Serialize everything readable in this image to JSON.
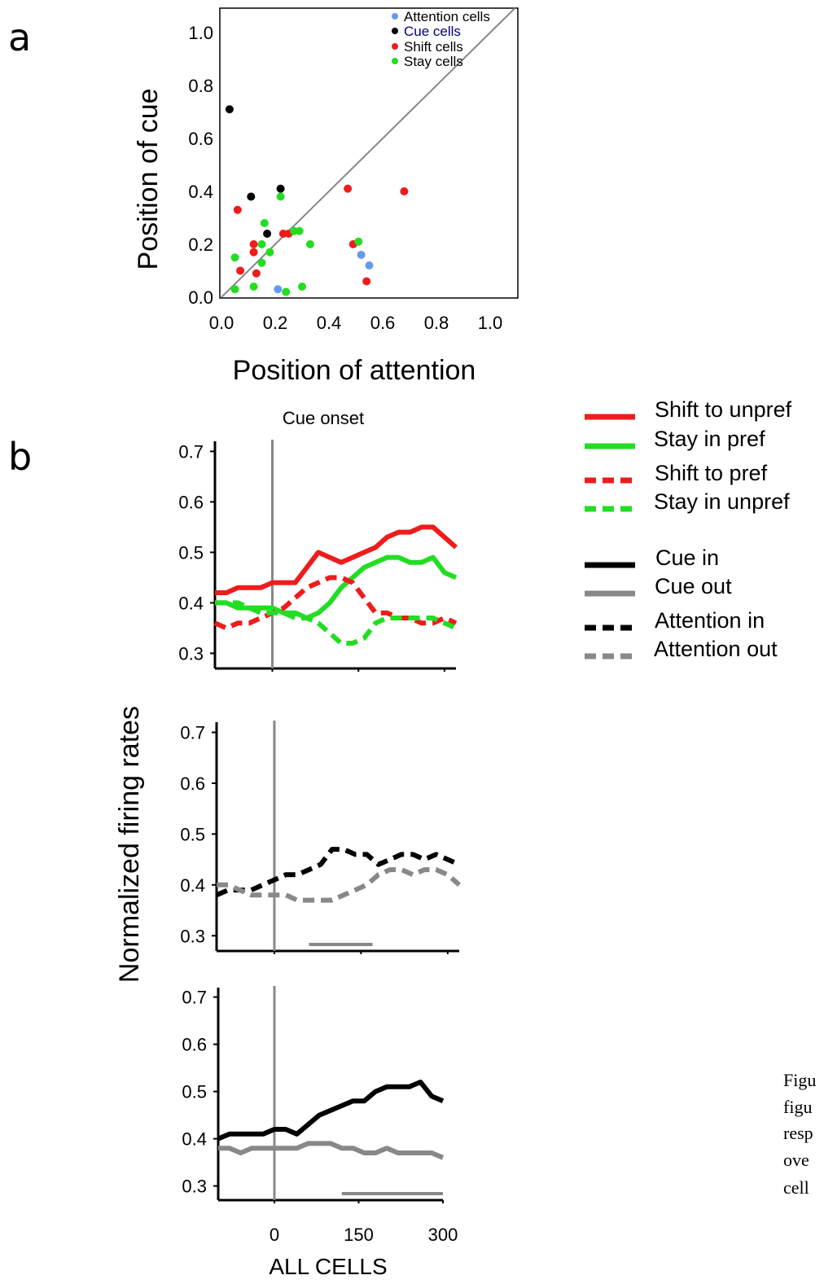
{
  "panels": {
    "a": "a",
    "b": "b"
  },
  "caption_lines": [
    "Figu",
    "figu",
    "resp",
    "ove",
    "cell"
  ],
  "colors": {
    "attention": "#6699ee",
    "cue": "#000000",
    "shift": "#ee1c1c",
    "stay": "#22dd22",
    "cue_label": "#000080",
    "diagonal": "#888888",
    "gray": "#888888"
  },
  "chart_data": [
    {
      "type": "scatter",
      "xlabel": "Position of attention",
      "ylabel": "Position of cue",
      "xlim": [
        0,
        1.1
      ],
      "ylim": [
        0,
        1.1
      ],
      "xticks": [
        "0.0",
        "0.2",
        "0.4",
        "0.6",
        "0.8",
        "1.0"
      ],
      "yticks": [
        "0.0",
        "0.2",
        "0.4",
        "0.6",
        "0.8",
        "1.0"
      ],
      "diagonal": true,
      "legend_position": "top-right",
      "series": [
        {
          "name": "Attention cells",
          "color": "#6699ee",
          "points": [
            [
              0.21,
              0.03
            ],
            [
              0.52,
              0.16
            ],
            [
              0.55,
              0.12
            ]
          ]
        },
        {
          "name": "Cue cells",
          "color": "#000000",
          "points": [
            [
              0.03,
              0.71
            ],
            [
              0.11,
              0.38
            ],
            [
              0.22,
              0.41
            ],
            [
              0.17,
              0.24
            ]
          ]
        },
        {
          "name": "Shift cells",
          "color": "#ee1c1c",
          "points": [
            [
              0.06,
              0.33
            ],
            [
              0.47,
              0.41
            ],
            [
              0.68,
              0.4
            ],
            [
              0.12,
              0.2
            ],
            [
              0.12,
              0.17
            ],
            [
              0.13,
              0.09
            ],
            [
              0.07,
              0.1
            ],
            [
              0.23,
              0.24
            ],
            [
              0.25,
              0.24
            ],
            [
              0.49,
              0.2
            ],
            [
              0.54,
              0.06
            ]
          ]
        },
        {
          "name": "Stay cells",
          "color": "#22dd22",
          "points": [
            [
              0.22,
              0.38
            ],
            [
              0.16,
              0.28
            ],
            [
              0.05,
              0.15
            ],
            [
              0.15,
              0.2
            ],
            [
              0.18,
              0.17
            ],
            [
              0.15,
              0.13
            ],
            [
              0.27,
              0.25
            ],
            [
              0.29,
              0.25
            ],
            [
              0.33,
              0.2
            ],
            [
              0.51,
              0.21
            ],
            [
              0.12,
              0.04
            ],
            [
              0.24,
              0.02
            ],
            [
              0.3,
              0.04
            ],
            [
              0.05,
              0.03
            ]
          ]
        }
      ]
    },
    {
      "type": "line",
      "title": "Cue onset",
      "xlim": [
        -100,
        320
      ],
      "ylim": [
        0.27,
        0.72
      ],
      "yticks": [
        "0.3",
        "0.4",
        "0.5",
        "0.6",
        "0.7"
      ],
      "series": [
        {
          "name": "Shift to unpref",
          "color": "#ee1c1c",
          "dash": "solid",
          "x": [
            -100,
            -80,
            -60,
            -40,
            -20,
            0,
            20,
            40,
            60,
            80,
            100,
            120,
            140,
            160,
            180,
            200,
            220,
            240,
            260,
            280,
            300,
            320
          ],
          "y": [
            0.42,
            0.42,
            0.43,
            0.43,
            0.43,
            0.44,
            0.44,
            0.44,
            0.47,
            0.5,
            0.49,
            0.48,
            0.49,
            0.5,
            0.51,
            0.53,
            0.54,
            0.54,
            0.55,
            0.55,
            0.53,
            0.51
          ]
        },
        {
          "name": "Stay in pref",
          "color": "#22dd22",
          "dash": "solid",
          "x": [
            -100,
            -80,
            -60,
            -40,
            -20,
            0,
            20,
            40,
            60,
            80,
            100,
            120,
            140,
            160,
            180,
            200,
            220,
            240,
            260,
            280,
            300,
            320
          ],
          "y": [
            0.4,
            0.4,
            0.39,
            0.39,
            0.39,
            0.39,
            0.38,
            0.38,
            0.37,
            0.38,
            0.4,
            0.43,
            0.45,
            0.47,
            0.48,
            0.49,
            0.49,
            0.48,
            0.48,
            0.49,
            0.46,
            0.45
          ]
        },
        {
          "name": "Shift to pref",
          "color": "#ee1c1c",
          "dash": "dashed",
          "x": [
            -100,
            -80,
            -60,
            -40,
            -20,
            0,
            20,
            40,
            60,
            80,
            100,
            120,
            140,
            160,
            180,
            200,
            220,
            240,
            260,
            280,
            300,
            320
          ],
          "y": [
            0.36,
            0.35,
            0.36,
            0.36,
            0.37,
            0.38,
            0.39,
            0.41,
            0.43,
            0.44,
            0.45,
            0.45,
            0.44,
            0.41,
            0.38,
            0.38,
            0.37,
            0.37,
            0.36,
            0.36,
            0.37,
            0.36
          ]
        },
        {
          "name": "Stay in unpref",
          "color": "#22dd22",
          "dash": "dashed",
          "x": [
            -100,
            -80,
            -60,
            -40,
            -20,
            0,
            20,
            40,
            60,
            80,
            100,
            120,
            140,
            160,
            180,
            200,
            220,
            240,
            260,
            280,
            300,
            320
          ],
          "y": [
            0.4,
            0.4,
            0.4,
            0.39,
            0.38,
            0.38,
            0.38,
            0.37,
            0.37,
            0.36,
            0.34,
            0.32,
            0.32,
            0.33,
            0.36,
            0.37,
            0.37,
            0.37,
            0.37,
            0.37,
            0.36,
            0.35
          ]
        }
      ]
    },
    {
      "type": "line",
      "xlim": [
        -100,
        320
      ],
      "ylim": [
        0.27,
        0.72
      ],
      "yticks": [
        "0.3",
        "0.4",
        "0.5",
        "0.6",
        "0.7"
      ],
      "significance_bar": [
        60,
        170
      ],
      "series": [
        {
          "name": "Attention in",
          "color": "#000000",
          "dash": "dashed",
          "x": [
            -100,
            -80,
            -60,
            -40,
            -20,
            0,
            20,
            40,
            60,
            80,
            100,
            120,
            140,
            160,
            180,
            200,
            220,
            240,
            260,
            280,
            300,
            320
          ],
          "y": [
            0.38,
            0.39,
            0.39,
            0.39,
            0.4,
            0.41,
            0.42,
            0.42,
            0.43,
            0.44,
            0.47,
            0.47,
            0.46,
            0.46,
            0.44,
            0.45,
            0.46,
            0.46,
            0.45,
            0.46,
            0.45,
            0.44
          ]
        },
        {
          "name": "Attention out",
          "color": "#888888",
          "dash": "dashed",
          "x": [
            -100,
            -80,
            -60,
            -40,
            -20,
            0,
            20,
            40,
            60,
            80,
            100,
            120,
            140,
            160,
            180,
            200,
            220,
            240,
            260,
            280,
            300,
            320
          ],
          "y": [
            0.4,
            0.4,
            0.39,
            0.38,
            0.38,
            0.38,
            0.38,
            0.37,
            0.37,
            0.37,
            0.37,
            0.38,
            0.39,
            0.4,
            0.42,
            0.43,
            0.43,
            0.42,
            0.43,
            0.43,
            0.42,
            0.4
          ]
        }
      ]
    },
    {
      "type": "line",
      "xlim": [
        -100,
        300
      ],
      "ylim": [
        0.27,
        0.72
      ],
      "xticks": [
        "0",
        "150",
        "300"
      ],
      "yticks": [
        "0.3",
        "0.4",
        "0.5",
        "0.6",
        "0.7"
      ],
      "xlabel": "ALL CELLS",
      "ylabel": "Normalized firing rates",
      "significance_bar": [
        120,
        300
      ],
      "series": [
        {
          "name": "Cue in",
          "color": "#000000",
          "dash": "solid",
          "x": [
            -100,
            -80,
            -60,
            -40,
            -20,
            0,
            20,
            40,
            60,
            80,
            100,
            120,
            140,
            160,
            180,
            200,
            220,
            240,
            260,
            280,
            300
          ],
          "y": [
            0.4,
            0.41,
            0.41,
            0.41,
            0.41,
            0.42,
            0.42,
            0.41,
            0.43,
            0.45,
            0.46,
            0.47,
            0.48,
            0.48,
            0.5,
            0.51,
            0.51,
            0.51,
            0.52,
            0.49,
            0.48
          ]
        },
        {
          "name": "Cue out",
          "color": "#888888",
          "dash": "solid",
          "x": [
            -100,
            -80,
            -60,
            -40,
            -20,
            0,
            20,
            40,
            60,
            80,
            100,
            120,
            140,
            160,
            180,
            200,
            220,
            240,
            260,
            280,
            300
          ],
          "y": [
            0.38,
            0.38,
            0.37,
            0.38,
            0.38,
            0.38,
            0.38,
            0.38,
            0.39,
            0.39,
            0.39,
            0.38,
            0.38,
            0.37,
            0.37,
            0.38,
            0.37,
            0.37,
            0.37,
            0.37,
            0.36
          ]
        }
      ]
    }
  ]
}
